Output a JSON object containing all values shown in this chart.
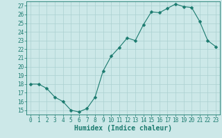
{
  "x": [
    0,
    1,
    2,
    3,
    4,
    5,
    6,
    7,
    8,
    9,
    10,
    11,
    12,
    13,
    14,
    15,
    16,
    17,
    18,
    19,
    20,
    21,
    22,
    23
  ],
  "y": [
    18.0,
    18.0,
    17.5,
    16.5,
    16.0,
    15.0,
    14.8,
    15.2,
    16.5,
    19.5,
    21.2,
    22.2,
    23.3,
    23.0,
    24.8,
    26.3,
    26.2,
    26.7,
    27.2,
    26.9,
    26.8,
    25.2,
    23.0,
    22.3
  ],
  "line_color": "#1a7a6e",
  "marker": "D",
  "marker_size": 2.5,
  "bg_color": "#cce8e8",
  "grid_color": "#aad0d0",
  "xlabel": "Humidex (Indice chaleur)",
  "ylim": [
    14.5,
    27.5
  ],
  "xlim": [
    -0.5,
    23.5
  ],
  "yticks": [
    15,
    16,
    17,
    18,
    19,
    20,
    21,
    22,
    23,
    24,
    25,
    26,
    27
  ],
  "xticks": [
    0,
    1,
    2,
    3,
    4,
    5,
    6,
    7,
    8,
    9,
    10,
    11,
    12,
    13,
    14,
    15,
    16,
    17,
    18,
    19,
    20,
    21,
    22,
    23
  ],
  "tick_label_fontsize": 5.5,
  "xlabel_fontsize": 7,
  "tick_color": "#1a7a6e",
  "axis_color": "#1a7a6e"
}
